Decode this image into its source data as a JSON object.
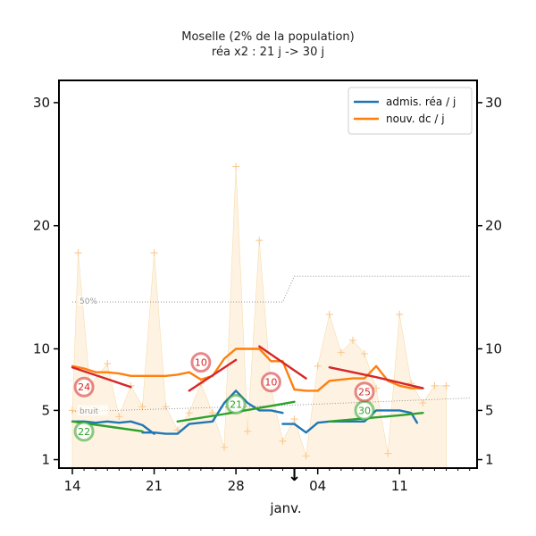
{
  "chart_data": {
    "type": "line",
    "title": "Moselle (2% de la population)",
    "subtitle": "réa x2 : 21 j -> 30 j",
    "xlabel": "janv.",
    "ylabel": "",
    "x_range": [
      0,
      34
    ],
    "ylim": [
      0,
      31
    ],
    "yticks": [
      1,
      5,
      10,
      20,
      30
    ],
    "xticks": [
      {
        "label": "14",
        "x": 0
      },
      {
        "label": "21",
        "x": 7
      },
      {
        "label": "28",
        "x": 14
      },
      {
        "label": "04",
        "x": 21
      },
      {
        "label": "11",
        "x": 28
      }
    ],
    "bg_points": [
      {
        "x": 0,
        "y": 5
      },
      {
        "x": 0.5,
        "y": 17.8
      },
      {
        "x": 1.5,
        "y": 7
      },
      {
        "x": 3,
        "y": 8.8
      },
      {
        "x": 4,
        "y": 4.5
      },
      {
        "x": 5,
        "y": 7
      },
      {
        "x": 6,
        "y": 5.3
      },
      {
        "x": 7,
        "y": 17.8
      },
      {
        "x": 8,
        "y": 5.3
      },
      {
        "x": 9,
        "y": 3.4
      },
      {
        "x": 10,
        "y": 4.8
      },
      {
        "x": 11,
        "y": 7.2
      },
      {
        "x": 12,
        "y": 4.8
      },
      {
        "x": 13,
        "y": 2
      },
      {
        "x": 14,
        "y": 24.8
      },
      {
        "x": 15,
        "y": 3.3
      },
      {
        "x": 16,
        "y": 18.8
      },
      {
        "x": 17,
        "y": 6.8
      },
      {
        "x": 18,
        "y": 2.5
      },
      {
        "x": 19,
        "y": 4.3
      },
      {
        "x": 20,
        "y": 1.3
      },
      {
        "x": 21,
        "y": 8.6
      },
      {
        "x": 22,
        "y": 12.8
      },
      {
        "x": 23,
        "y": 9.7
      },
      {
        "x": 24,
        "y": 10.7
      },
      {
        "x": 25,
        "y": 9.6
      },
      {
        "x": 26,
        "y": 6.8
      },
      {
        "x": 27,
        "y": 1.5
      },
      {
        "x": 28,
        "y": 12.8
      },
      {
        "x": 29,
        "y": 7.2
      },
      {
        "x": 30,
        "y": 5.6
      },
      {
        "x": 31,
        "y": 7
      },
      {
        "x": 32,
        "y": 7
      }
    ],
    "ref_lines": [
      {
        "label": "50%",
        "points": [
          [
            0,
            13.8
          ],
          [
            18,
            13.8
          ],
          [
            19,
            15.9
          ],
          [
            34,
            15.9
          ]
        ]
      },
      {
        "label": "bruit",
        "points": [
          [
            0,
            4.9
          ],
          [
            18,
            5.4
          ],
          [
            34,
            6
          ]
        ]
      }
    ],
    "series": [
      {
        "name": "admis. réa / j",
        "color": "#1f77b4",
        "segments": [
          [
            [
              0,
              4.1
            ],
            [
              1,
              4.1
            ],
            [
              2,
              4
            ],
            [
              3,
              4.1
            ],
            [
              4,
              4
            ],
            [
              5,
              4.1
            ],
            [
              6,
              3.8
            ],
            [
              7,
              3.1
            ]
          ],
          [
            [
              6,
              3.2
            ],
            [
              7,
              3.2
            ],
            [
              8,
              3.1
            ],
            [
              9,
              3.1
            ],
            [
              10,
              3.9
            ],
            [
              11,
              4
            ],
            [
              12,
              4.1
            ],
            [
              13,
              5.6
            ],
            [
              14,
              6.6
            ],
            [
              15,
              5.6
            ],
            [
              16,
              5
            ],
            [
              17,
              5
            ],
            [
              18,
              4.8
            ]
          ],
          [
            [
              18,
              3.9
            ],
            [
              19,
              3.9
            ],
            [
              20,
              3.2
            ],
            [
              21,
              4
            ],
            [
              22,
              4.1
            ],
            [
              23,
              4.1
            ],
            [
              24,
              4.1
            ],
            [
              25,
              4.1
            ],
            [
              26,
              5
            ],
            [
              27,
              5
            ],
            [
              28,
              5
            ],
            [
              29,
              4.8
            ],
            [
              29.5,
              4
            ]
          ]
        ]
      },
      {
        "name": "nouv. dc / j",
        "color": "#ff7f0e",
        "segments": [
          [
            [
              0,
              8.6
            ],
            [
              1,
              8.4
            ],
            [
              2,
              8.1
            ],
            [
              3,
              8.1
            ],
            [
              4,
              8
            ],
            [
              5,
              7.8
            ],
            [
              6,
              7.8
            ],
            [
              7,
              7.8
            ],
            [
              8,
              7.8
            ],
            [
              9,
              7.9
            ],
            [
              10,
              8.1
            ],
            [
              11,
              7.5
            ],
            [
              12,
              7.8
            ],
            [
              13,
              9.2
            ],
            [
              14,
              10
            ],
            [
              15,
              10
            ],
            [
              16,
              10
            ],
            [
              17,
              9
            ],
            [
              18,
              9
            ],
            [
              19,
              6.7
            ],
            [
              20,
              6.6
            ],
            [
              21,
              6.6
            ],
            [
              22,
              7.4
            ],
            [
              23,
              7.5
            ],
            [
              24,
              7.6
            ],
            [
              25,
              7.6
            ],
            [
              26,
              8.6
            ],
            [
              27,
              7.4
            ],
            [
              28,
              7
            ],
            [
              29,
              6.8
            ],
            [
              30,
              6.8
            ]
          ]
        ]
      }
    ],
    "trends": [
      {
        "color": "#2ca02c",
        "label": "22",
        "label_pos": [
          1,
          3.3
        ],
        "points": [
          [
            0,
            4.1
          ],
          [
            6,
            3.3
          ]
        ]
      },
      {
        "color": "#2ca02c",
        "label": "21",
        "label_pos": [
          14,
          5.5
        ],
        "points": [
          [
            9,
            4.1
          ],
          [
            13,
            4.7
          ],
          [
            19,
            5.7
          ]
        ]
      },
      {
        "color": "#2ca02c",
        "label": "30",
        "label_pos": [
          25,
          5
        ],
        "points": [
          [
            22,
            4.1
          ],
          [
            28,
            4.6
          ],
          [
            30,
            4.8
          ]
        ]
      },
      {
        "color": "#d62728",
        "label": "24",
        "label_pos": [
          1,
          6.9
        ],
        "points": [
          [
            0,
            8.5
          ],
          [
            5,
            6.9
          ]
        ]
      },
      {
        "color": "#d62728",
        "label": "10",
        "label_pos": [
          11,
          8.9
        ],
        "points": [
          [
            10,
            6.6
          ],
          [
            14,
            9.1
          ]
        ]
      },
      {
        "color": "#d62728",
        "label": "10",
        "label_pos": [
          17,
          7.3
        ],
        "points": [
          [
            16,
            10.2
          ],
          [
            20,
            7.6
          ]
        ]
      },
      {
        "color": "#d62728",
        "label": "25",
        "label_pos": [
          25,
          6.5
        ],
        "points": [
          [
            22,
            8.5
          ],
          [
            26,
            7.7
          ],
          [
            30,
            6.8
          ]
        ]
      }
    ],
    "legend": {
      "position": "top-right",
      "entries": [
        {
          "label": "admis. réa / j",
          "color": "#1f77b4"
        },
        {
          "label": "nouv. dc / j",
          "color": "#ff7f0e"
        }
      ]
    },
    "arrow_marker": {
      "label": "↓",
      "x": 19
    }
  }
}
